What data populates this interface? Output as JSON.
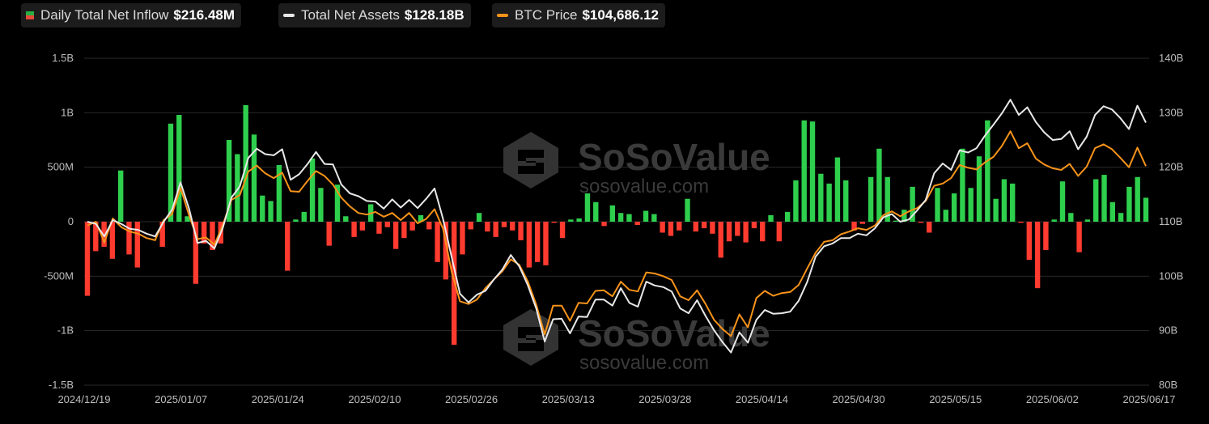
{
  "legend": [
    {
      "label": "Daily Total Net Inflow",
      "value": "$216.48M",
      "swatch": "bar"
    },
    {
      "label": "Total Net Assets",
      "value": "$128.18B",
      "swatch": "line",
      "color": "#e8e8e8"
    },
    {
      "label": "BTC Price",
      "value": "$104,686.12",
      "swatch": "line",
      "color": "#f7931a"
    }
  ],
  "watermark": {
    "brand": "SoSoValue",
    "url": "sosovalue.com"
  },
  "chart_data": {
    "type": "bar+line",
    "colors": {
      "positive": "#2fcf4e",
      "negative": "#ff3b30",
      "assets": "#e8e8e8",
      "btc": "#f7931a",
      "grid": "#2a2a2a"
    },
    "x_tick_labels": [
      "2024/12/19",
      "2025/01/07",
      "2025/01/24",
      "2025/02/10",
      "2025/02/26",
      "2025/03/13",
      "2025/03/28",
      "2025/04/14",
      "2025/04/30",
      "2025/05/15",
      "2025/06/02",
      "2025/06/17"
    ],
    "y_left_ticks": [
      "1.5B",
      "1B",
      "500M",
      "0",
      "-500M",
      "-1B",
      "-1.5B"
    ],
    "y_right_ticks": [
      "140B",
      "130B",
      "120B",
      "110B",
      "100B",
      "90B",
      "80B"
    ],
    "y_left_range": [
      -1.5,
      1.5
    ],
    "y_left_unit": "B",
    "y_right_range": [
      80,
      140
    ],
    "y_right_unit": "B",
    "grid": "horizontal",
    "series": [
      {
        "name": "Daily Total Net Inflow",
        "kind": "bar",
        "values": [
          -0.68,
          -0.27,
          -0.23,
          -0.34,
          0.47,
          -0.3,
          -0.42,
          0.0,
          0.0,
          -0.23,
          0.9,
          0.98,
          0.05,
          -0.57,
          -0.2,
          -0.26,
          -0.2,
          0.75,
          0.62,
          1.07,
          0.8,
          0.24,
          0.19,
          0.52,
          -0.45,
          0.02,
          0.09,
          0.58,
          0.31,
          -0.22,
          0.34,
          0.05,
          -0.14,
          -0.08,
          0.16,
          -0.11,
          -0.05,
          -0.25,
          -0.15,
          -0.08,
          0.06,
          -0.07,
          -0.37,
          -0.53,
          -1.13,
          -0.3,
          -0.07,
          0.08,
          -0.09,
          -0.14,
          -0.05,
          -0.08,
          -0.17,
          -0.42,
          -0.37,
          -0.4,
          -0.01,
          -0.15,
          0.02,
          0.03,
          0.26,
          0.18,
          -0.04,
          0.15,
          0.08,
          0.07,
          -0.03,
          0.1,
          0.07,
          -0.1,
          -0.13,
          -0.08,
          0.21,
          -0.09,
          -0.06,
          -0.11,
          -0.33,
          -0.18,
          -0.13,
          -0.19,
          -0.06,
          -0.18,
          0.06,
          -0.18,
          0.09,
          0.38,
          0.93,
          0.92,
          0.44,
          0.35,
          0.59,
          0.38,
          -0.08,
          -0.02,
          0.41,
          0.67,
          0.41,
          0.01,
          0.11,
          0.32,
          -0.01,
          -0.1,
          0.31,
          0.11,
          0.26,
          0.67,
          0.31,
          0.6,
          0.93,
          0.21,
          0.39,
          0.35,
          -0.01,
          -0.35,
          -0.61,
          -0.26,
          0.02,
          0.37,
          0.08,
          -0.28,
          0.02,
          0.39,
          0.43,
          0.18,
          0.08,
          0.32,
          0.41,
          0.22
        ]
      },
      {
        "name": "Total Net Assets",
        "kind": "line",
        "axis": "right",
        "values": [
          110.0,
          109.6,
          107.3,
          110.3,
          109.6,
          108.7,
          108.5,
          107.8,
          107.3,
          110.0,
          112.2,
          117.2,
          112.4,
          106.1,
          106.5,
          105.1,
          108.9,
          114.4,
          116.5,
          121.7,
          123.4,
          122.4,
          122.2,
          123.3,
          117.7,
          118.7,
          120.6,
          122.8,
          120.6,
          120.5,
          116.8,
          115.2,
          114.7,
          113.8,
          113.7,
          112.4,
          114.1,
          112.6,
          114.0,
          112.5,
          114.2,
          116.1,
          110.5,
          103.6,
          96.8,
          95.2,
          96.6,
          97.3,
          99.4,
          101.2,
          103.9,
          101.8,
          98.4,
          94.1,
          88.0,
          92.1,
          92.2,
          89.5,
          92.6,
          92.5,
          95.7,
          95.7,
          94.6,
          97.8,
          95.1,
          94.4,
          99.0,
          98.3,
          98.0,
          97.2,
          94.1,
          93.2,
          95.6,
          92.7,
          90.1,
          87.9,
          86.0,
          89.7,
          87.8,
          92.0,
          93.8,
          93.1,
          93.2,
          93.5,
          95.5,
          98.9,
          103.6,
          105.5,
          106.0,
          107.0,
          107.0,
          107.8,
          107.5,
          108.8,
          110.8,
          111.4,
          110.0,
          110.4,
          112.1,
          114.0,
          118.9,
          120.7,
          119.5,
          123.1,
          122.7,
          123.5,
          125.8,
          127.8,
          129.9,
          132.4,
          129.6,
          131.0,
          128.3,
          126.4,
          125.0,
          125.2,
          126.6,
          123.3,
          125.6,
          129.6,
          131.2,
          130.6,
          129.0,
          127.0,
          131.3,
          128.2
        ]
      },
      {
        "name": "BTC Price",
        "kind": "line",
        "axis": "right",
        "values": [
          109.3,
          110.0,
          106.2,
          110.6,
          109.0,
          108.2,
          107.8,
          107.0,
          106.6,
          110.3,
          111.4,
          116.2,
          111.2,
          106.8,
          107.1,
          105.8,
          109.4,
          114.0,
          114.9,
          119.2,
          120.3,
          118.9,
          118.0,
          119.0,
          115.6,
          115.5,
          117.5,
          119.3,
          118.4,
          116.8,
          114.4,
          112.8,
          111.6,
          111.3,
          111.8,
          110.9,
          111.6,
          110.3,
          111.6,
          109.7,
          110.5,
          112.3,
          108.7,
          100.9,
          95.4,
          94.9,
          95.7,
          97.8,
          99.4,
          100.9,
          103.1,
          102.1,
          99.1,
          94.8,
          89.3,
          94.6,
          94.6,
          91.8,
          95.1,
          95.0,
          97.3,
          97.4,
          96.3,
          99.0,
          97.5,
          97.2,
          100.7,
          100.5,
          100.0,
          99.3,
          96.3,
          95.6,
          97.4,
          94.9,
          92.0,
          90.3,
          89.0,
          93.0,
          90.6,
          96.0,
          97.3,
          96.4,
          96.9,
          97.1,
          98.4,
          101.4,
          104.3,
          106.3,
          106.6,
          107.7,
          108.2,
          108.8,
          108.5,
          109.3,
          111.2,
          111.9,
          111.0,
          111.9,
          112.5,
          113.8,
          116.6,
          117.0,
          118.0,
          120.4,
          119.9,
          119.6,
          120.9,
          121.9,
          123.9,
          126.6,
          123.5,
          124.4,
          121.6,
          120.5,
          119.8,
          119.5,
          120.6,
          118.4,
          120.1,
          123.5,
          124.2,
          123.3,
          121.7,
          120.0,
          123.6,
          120.2
        ]
      }
    ]
  }
}
